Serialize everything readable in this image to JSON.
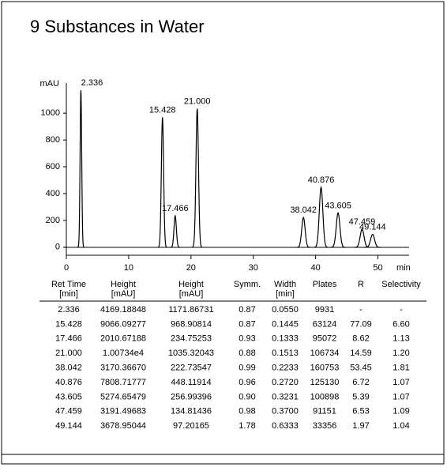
{
  "chart_data": {
    "type": "line",
    "title": "9 Substances in Water",
    "y_label": "mAU",
    "x_label": "min",
    "x": [
      2.336,
      15.428,
      17.466,
      21.0,
      38.042,
      40.876,
      43.605,
      47.459,
      49.144
    ],
    "peak_labels": [
      "2.336",
      "15.428",
      "17.466",
      "21.000",
      "38.042",
      "40.876",
      "43.605",
      "47.459",
      "49.144"
    ],
    "values": [
      1172,
      969,
      235,
      1035,
      223,
      448,
      257,
      135,
      97
    ],
    "color": "#000000",
    "xlim": [
      0,
      55
    ],
    "xticks": [
      0,
      10,
      20,
      30,
      40,
      50
    ],
    "ylim": [
      -60,
      1225
    ],
    "yticks": [
      0,
      200,
      400,
      600,
      800,
      1000
    ]
  },
  "table": {
    "columns": [
      [
        "Ret Time",
        "[min]"
      ],
      [
        "Height",
        "[mAU]"
      ],
      [
        "Height",
        "[mAU]"
      ],
      [
        "Symm."
      ],
      [
        "Width",
        "[min]"
      ],
      [
        "Plates"
      ],
      [
        "R"
      ],
      [
        "Selectivity"
      ]
    ],
    "rows": [
      [
        "2.336",
        "4169.18848",
        "1171.86731",
        "0.87",
        "0.0550",
        "9931",
        "-",
        "-"
      ],
      [
        "15.428",
        "9066.09277",
        "968.90814",
        "0.87",
        "0.1445",
        "63124",
        "77.09",
        "6.60"
      ],
      [
        "17.466",
        "2010.67188",
        "234.75253",
        "0.93",
        "0.1333",
        "95072",
        "8.62",
        "1.13"
      ],
      [
        "21.000",
        "1.00734e4",
        "1035.32043",
        "0.88",
        "0.1513",
        "106734",
        "14.59",
        "1.20"
      ],
      [
        "38.042",
        "3170.36670",
        "222.73547",
        "0.99",
        "0.2233",
        "160753",
        "53.45",
        "1.81"
      ],
      [
        "40.876",
        "7808.71777",
        "448.11914",
        "0.96",
        "0.2720",
        "125130",
        "6.72",
        "1.07"
      ],
      [
        "43.605",
        "5274.65479",
        "256.99396",
        "0.90",
        "0.3231",
        "100898",
        "5.39",
        "1.07"
      ],
      [
        "47.459",
        "3191.49683",
        "134.81436",
        "0.98",
        "0.3700",
        "91151",
        "6.53",
        "1.09"
      ],
      [
        "49.144",
        "3678.95044",
        "97.20165",
        "1.78",
        "0.6333",
        "33356",
        "1.97",
        "1.04"
      ]
    ]
  }
}
